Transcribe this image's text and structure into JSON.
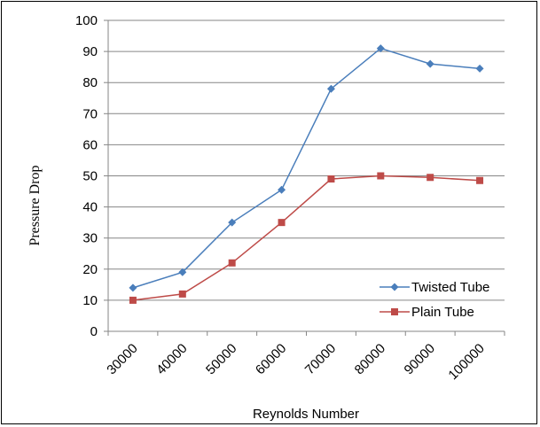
{
  "chart_data": {
    "type": "line",
    "title": "",
    "xlabel": "Reynolds Number",
    "ylabel": "Pressure Drop",
    "categories": [
      "30000",
      "40000",
      "50000",
      "60000",
      "70000",
      "80000",
      "90000",
      "100000"
    ],
    "ylim": [
      0,
      100
    ],
    "yticks": [
      "0",
      "10",
      "20",
      "30",
      "40",
      "50",
      "60",
      "70",
      "80",
      "90",
      "100"
    ],
    "grid": "horizontal",
    "legend_position": "bottom-right",
    "series": [
      {
        "name": "Twisted Tube",
        "color": "#4a7ebb",
        "marker": "diamond",
        "values": [
          14,
          19,
          35,
          45.5,
          78,
          91,
          86,
          84.5
        ]
      },
      {
        "name": "Plain Tube",
        "color": "#be4b48",
        "marker": "square",
        "values": [
          10,
          12,
          22,
          35,
          49,
          50,
          49.5,
          48.5
        ]
      }
    ]
  }
}
